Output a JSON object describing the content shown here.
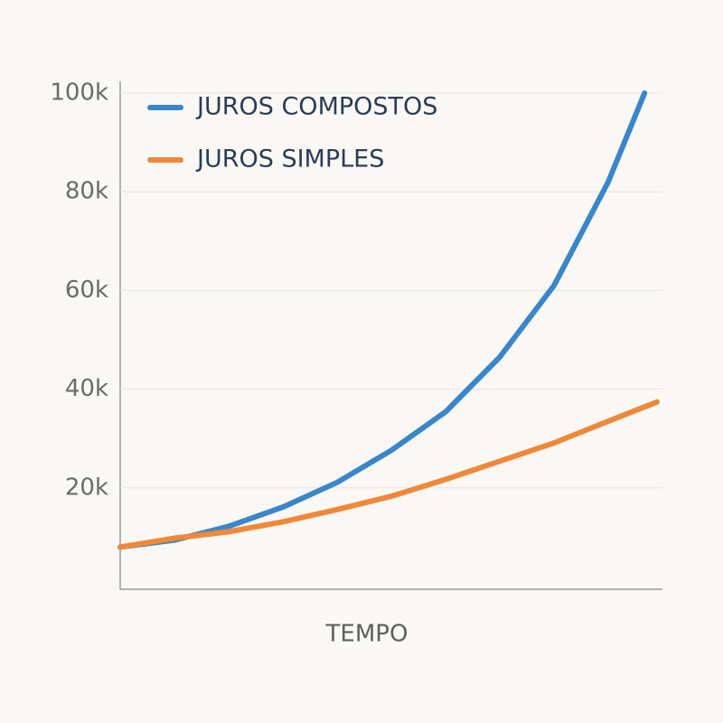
{
  "chart_data": {
    "type": "line",
    "x_label": "TEMPO",
    "xlim": [
      0,
      100
    ],
    "ylim": [
      0,
      100000
    ],
    "yticks": [
      {
        "value": 20000,
        "label": "20k"
      },
      {
        "value": 40000,
        "label": "40k"
      },
      {
        "value": 60000,
        "label": "60k"
      },
      {
        "value": 80000,
        "label": "80k"
      },
      {
        "value": 100000,
        "label": "100k"
      }
    ],
    "grid": true,
    "legend": "top-left",
    "series": [
      {
        "name": "JUROS COMPOSTOS",
        "color": "#3a86c8",
        "x": [
          0,
          10,
          20,
          30,
          40,
          50,
          60,
          70,
          80,
          90,
          96.7
        ],
        "values": [
          8000,
          9400,
          12200,
          16100,
          21100,
          27600,
          35400,
          46500,
          61000,
          82000,
          100000
        ]
      },
      {
        "name": "JUROS SIMPLES",
        "color": "#f0883a",
        "x": [
          0,
          10,
          20,
          30,
          40,
          50,
          60,
          70,
          80,
          90,
          99
        ],
        "values": [
          8000,
          9800,
          11100,
          13100,
          15600,
          18300,
          21700,
          25400,
          29100,
          33500,
          37400
        ]
      }
    ]
  }
}
